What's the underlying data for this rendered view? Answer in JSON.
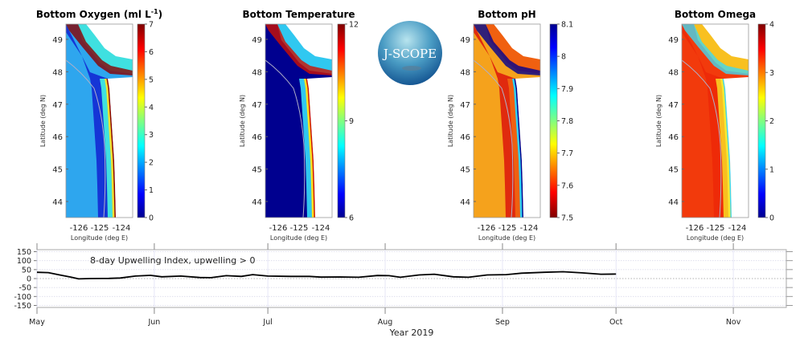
{
  "logo": {
    "text": "J-SCOPE"
  },
  "map_axes": {
    "lat_ticks": [
      "49",
      "48",
      "47",
      "46",
      "45",
      "44"
    ],
    "lon_ticks": [
      "-126",
      "-125",
      "-124"
    ],
    "ylabel": "Latitude (deg N)",
    "xlabel": "Longitude (deg E)"
  },
  "panels": [
    {
      "title": "Bottom Oxygen (ml L",
      "title_sup": "-1",
      "title_end": ")",
      "cbar_ticks": [
        "0",
        "1",
        "2",
        "3",
        "4",
        "5",
        "6",
        "7"
      ],
      "cbar_min": 0,
      "cbar_max": 7,
      "colormap": "jet",
      "colors": {
        "offshore": "#2ea6ee",
        "slope": "#1535d6",
        "shelf": "#3fe0e0",
        "inner": "#f0e030",
        "nearshore": "#8a0000"
      }
    },
    {
      "title": "Bottom Temperature",
      "title_sup": "",
      "title_end": "",
      "cbar_ticks": [
        "6",
        "9",
        "12"
      ],
      "cbar_min": 6,
      "cbar_max": 12,
      "colormap": "jet",
      "colors": {
        "offshore": "#00008f",
        "slope": "#00008f",
        "shelf": "#30c8f0",
        "inner": "#f8e020",
        "nearshore": "#d01000"
      }
    },
    {
      "title": "Bottom pH",
      "title_sup": "",
      "title_end": "",
      "cbar_ticks": [
        "7.5",
        "7.6",
        "7.7",
        "7.8",
        "7.9",
        "8",
        "8.1"
      ],
      "cbar_min": 7.5,
      "cbar_max": 8.1,
      "colormap": "jet-reversed",
      "colors": {
        "offshore": "#f5a21c",
        "slope": "#e02a0e",
        "shelf": "#f06010",
        "inner": "#30d0f0",
        "nearshore": "#000090"
      }
    },
    {
      "title": "Bottom Omega",
      "title_sup": "",
      "title_end": "",
      "cbar_ticks": [
        "0",
        "1",
        "2",
        "3",
        "4"
      ],
      "cbar_min": 0,
      "cbar_max": 4,
      "colormap": "jet",
      "colors": {
        "offshore": "#f23a0c",
        "slope": "#ee2a08",
        "shelf": "#f8c020",
        "inner": "#f8e830",
        "nearshore": "#40d8f0"
      }
    }
  ],
  "chart_data": {
    "type": "line",
    "annotation": "8-day Upwelling Index, upwelling > 0",
    "xlabel": "Year 2019",
    "ylabel": "",
    "x_ticks": [
      "May",
      "Jun",
      "Jul",
      "Aug",
      "Sep",
      "Oct",
      "Nov"
    ],
    "x_tick_dates": [
      "2019-05-01",
      "2019-06-01",
      "2019-07-01",
      "2019-08-01",
      "2019-09-01",
      "2019-10-01",
      "2019-11-01"
    ],
    "xlim": [
      "2019-05-01",
      "2019-11-15"
    ],
    "y_ticks": [
      "150",
      "100",
      "50",
      "0",
      "-50",
      "-100",
      "-150"
    ],
    "ylim": [
      -160,
      160
    ],
    "grid": true,
    "zero_line": "dotted",
    "series": [
      {
        "color": "#000000",
        "points": [
          [
            "2019-05-01",
            35
          ],
          [
            "2019-05-04",
            33
          ],
          [
            "2019-05-07",
            20
          ],
          [
            "2019-05-10",
            8
          ],
          [
            "2019-05-12",
            -2
          ],
          [
            "2019-05-15",
            0
          ],
          [
            "2019-05-20",
            1
          ],
          [
            "2019-05-23",
            3
          ],
          [
            "2019-05-27",
            14
          ],
          [
            "2019-05-31",
            18
          ],
          [
            "2019-06-03",
            10
          ],
          [
            "2019-06-08",
            14
          ],
          [
            "2019-06-13",
            6
          ],
          [
            "2019-06-16",
            5
          ],
          [
            "2019-06-20",
            16
          ],
          [
            "2019-06-24",
            12
          ],
          [
            "2019-06-27",
            22
          ],
          [
            "2019-07-01",
            14
          ],
          [
            "2019-07-07",
            12
          ],
          [
            "2019-07-12",
            12
          ],
          [
            "2019-07-15",
            8
          ],
          [
            "2019-07-20",
            9
          ],
          [
            "2019-07-25",
            7
          ],
          [
            "2019-07-30",
            17
          ],
          [
            "2019-08-02",
            16
          ],
          [
            "2019-08-05",
            7
          ],
          [
            "2019-08-10",
            20
          ],
          [
            "2019-08-14",
            24
          ],
          [
            "2019-08-19",
            10
          ],
          [
            "2019-08-23",
            7
          ],
          [
            "2019-08-28",
            20
          ],
          [
            "2019-09-02",
            22
          ],
          [
            "2019-09-06",
            30
          ],
          [
            "2019-09-12",
            35
          ],
          [
            "2019-09-17",
            38
          ],
          [
            "2019-09-22",
            32
          ],
          [
            "2019-09-27",
            24
          ],
          [
            "2019-10-01",
            25
          ]
        ]
      }
    ]
  }
}
